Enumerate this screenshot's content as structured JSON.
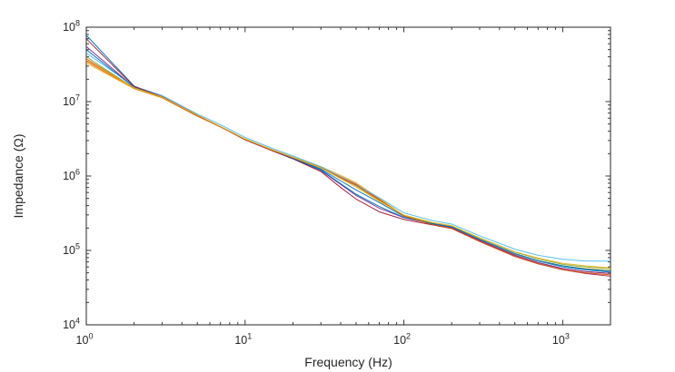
{
  "figure": {
    "background": "#ffffff",
    "axis_color": "#262626"
  },
  "chart_data": {
    "type": "line",
    "title": "",
    "xlabel": "Frequency (Hz)",
    "ylabel": "Impedance (Ω)",
    "x_scale": "log",
    "y_scale": "log",
    "xlim": [
      1,
      2000
    ],
    "ylim": [
      10000,
      100000000
    ],
    "x_tick_base": "10",
    "x_tick_exponents": [
      0,
      1,
      2,
      3
    ],
    "y_tick_base": "10",
    "y_tick_exponents": [
      4,
      5,
      6,
      7,
      8
    ],
    "minor_ticks": "log-decades",
    "tick_direction": "in",
    "box": true,
    "grid": false,
    "legend": null,
    "x": [
      1,
      2,
      3,
      5,
      7,
      10,
      15,
      20,
      30,
      40,
      50,
      70,
      100,
      150,
      200,
      300,
      500,
      700,
      1000,
      1400,
      2000
    ],
    "series": [
      {
        "name": "series-1",
        "color": "#0072BD",
        "values": [
          78000000,
          16200000,
          11600000,
          6500000,
          4600000,
          3100000,
          2200000,
          1750000,
          1240000,
          860000,
          650000,
          440000,
          287000,
          230000,
          205000,
          140000,
          89000,
          72000,
          60000,
          55000,
          51000
        ]
      },
      {
        "name": "series-2",
        "color": "#D95319",
        "values": [
          35000000,
          15000000,
          11300000,
          6400000,
          4600000,
          3100000,
          2220000,
          1790000,
          1310000,
          980000,
          780000,
          490000,
          290000,
          225000,
          199000,
          134000,
          86000,
          68000,
          57000,
          52000,
          49000
        ]
      },
      {
        "name": "series-3",
        "color": "#EDB120",
        "values": [
          33000000,
          14900000,
          11200000,
          6400000,
          4550000,
          3100000,
          2220000,
          1800000,
          1340000,
          1020000,
          810000,
          500000,
          296000,
          230000,
          205000,
          140000,
          90000,
          73000,
          62000,
          57000,
          54000
        ]
      },
      {
        "name": "series-4",
        "color": "#7E2F8E",
        "values": [
          55000000,
          15700000,
          11500000,
          6500000,
          4600000,
          3070000,
          2180000,
          1720000,
          1190000,
          770000,
          550000,
          370000,
          276000,
          228000,
          203000,
          137000,
          86000,
          69000,
          57000,
          52000,
          49000
        ]
      },
      {
        "name": "series-5",
        "color": "#77AC30",
        "values": [
          40000000,
          15200000,
          11400000,
          6500000,
          4600000,
          3100000,
          2200000,
          1770000,
          1280000,
          940000,
          740000,
          470000,
          293000,
          235000,
          211000,
          146000,
          95000,
          77000,
          65000,
          60000,
          57000
        ]
      },
      {
        "name": "series-6",
        "color": "#4DBEEE",
        "values": [
          45000000,
          16100000,
          12100000,
          6800000,
          4900000,
          3300000,
          2330000,
          1860000,
          1340000,
          970000,
          760000,
          510000,
          320000,
          253000,
          226000,
          157000,
          104000,
          86000,
          76000,
          72000,
          72000
        ]
      },
      {
        "name": "series-7",
        "color": "#A2142F",
        "values": [
          70000000,
          16000000,
          11700000,
          6600000,
          4600000,
          3070000,
          2160000,
          1700000,
          1150000,
          700000,
          490000,
          330000,
          261000,
          221000,
          197000,
          132000,
          83000,
          66000,
          55000,
          49000,
          45000
        ]
      },
      {
        "name": "series-8",
        "color": "#0072BD",
        "values": [
          50000000,
          15500000,
          11500000,
          6500000,
          4600000,
          3100000,
          2200000,
          1730000,
          1210000,
          790000,
          570000,
          390000,
          278000,
          230000,
          207000,
          141000,
          91000,
          73000,
          62000,
          56000,
          53000
        ]
      },
      {
        "name": "series-9",
        "color": "#D95319",
        "values": [
          37500000,
          15200000,
          11400000,
          6400000,
          4600000,
          3100000,
          2200000,
          1770000,
          1290000,
          950000,
          750000,
          480000,
          290000,
          223000,
          197000,
          132000,
          83000,
          66000,
          55000,
          50000,
          47000
        ]
      },
      {
        "name": "series-10",
        "color": "#EDB120",
        "values": [
          36000000,
          15300000,
          11500000,
          6600000,
          4650000,
          3160000,
          2240000,
          1790000,
          1290000,
          920000,
          710000,
          460000,
          299000,
          239000,
          215000,
          148000,
          96000,
          79000,
          67000,
          62000,
          58000
        ]
      }
    ]
  }
}
